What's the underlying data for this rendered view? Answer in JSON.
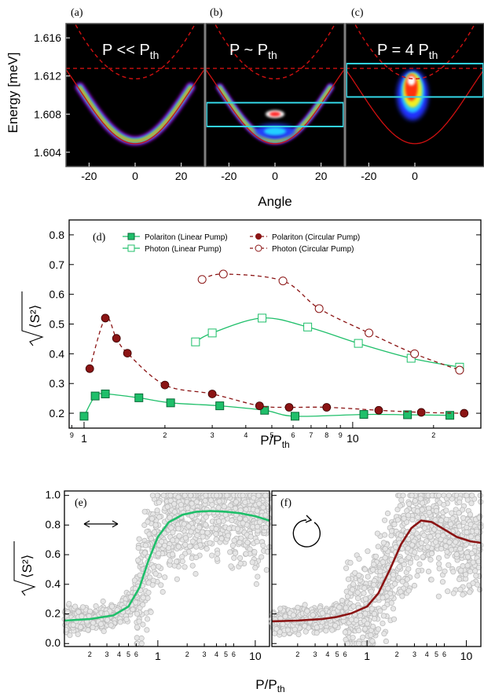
{
  "colors": {
    "green": "#1fbf6a",
    "darkred": "#8b1414",
    "cyan": "#33d6e6",
    "red_curve": "#d01010",
    "scatter": "#bcbcbc"
  },
  "chart_data": [
    {
      "type": "heatmap",
      "panel": "(a)",
      "title_main": "P << P",
      "title_sub": "th",
      "xlabel": "Angle",
      "ylabel": "Energy [meV]",
      "xlim": [
        -30,
        30
      ],
      "ylim": [
        1.6025,
        1.6175
      ],
      "xticks": [
        -20,
        0,
        20
      ],
      "yticks": [
        "1.604",
        "1.608",
        "1.612",
        "1.616"
      ],
      "ytick_values": [
        1.604,
        1.608,
        1.612,
        1.616
      ],
      "emission": {
        "center_energy": 1.605,
        "spread": "lower branch only"
      },
      "cyan_box": null
    },
    {
      "type": "heatmap",
      "panel": "(b)",
      "title_main": "P ~ P",
      "title_sub": "th",
      "xlim": [
        -30,
        30
      ],
      "xticks": [
        -20,
        0,
        20
      ],
      "emission": {
        "center_energy": 1.606,
        "spread": "lower branch plus bright spot near 1.608"
      },
      "cyan_box": [
        1.6067,
        1.6092
      ]
    },
    {
      "type": "heatmap",
      "panel": "(c)",
      "title_main": "P = 4 P",
      "title_sub": "th",
      "xlim": [
        -30,
        30
      ],
      "xticks": [
        -20,
        0
      ],
      "emission": {
        "center_energy": 1.61,
        "spread": "condensate around 1.608 to 1.612"
      },
      "cyan_box_outer": [
        1.6098,
        1.6133
      ],
      "cyan_box_inner": [
        1.6098,
        1.6098
      ]
    },
    {
      "type": "line",
      "panel": "(d)",
      "xlabel_main": "P/P",
      "xlabel_sub": "th",
      "xscale": "log",
      "xlim": [
        0.88,
        30
      ],
      "ylim": [
        0.15,
        0.85
      ],
      "yticks": [
        "0.2",
        "0.3",
        "0.4",
        "0.5",
        "0.6",
        "0.7",
        "0.8"
      ],
      "ytick_values": [
        0.2,
        0.3,
        0.4,
        0.5,
        0.6,
        0.7,
        0.8
      ],
      "xticks_major": [
        "1",
        "10"
      ],
      "xticks_minor": [
        "9",
        "2",
        "3",
        "4",
        "5",
        "6",
        "7",
        "8",
        "9",
        "2"
      ],
      "xticks_minor_values": [
        0.9,
        2,
        3,
        4,
        5,
        6,
        7,
        8,
        9,
        20
      ],
      "series": [
        {
          "name": "Polariton (Linear Pump)",
          "marker": "square-filled",
          "line": "solid",
          "x": [
            1.0,
            1.1,
            1.2,
            1.6,
            2.1,
            3.2,
            4.7,
            6.1,
            11.0,
            16.0,
            23.0
          ],
          "y": [
            0.19,
            0.258,
            0.265,
            0.252,
            0.235,
            0.225,
            0.21,
            0.19,
            0.196,
            0.195,
            0.193
          ]
        },
        {
          "name": "Photon (Linear Pump)",
          "marker": "square-open",
          "line": "solid",
          "x": [
            2.6,
            3.0,
            4.6,
            6.8,
            10.5,
            16.5,
            25.0
          ],
          "y": [
            0.44,
            0.47,
            0.52,
            0.49,
            0.435,
            0.385,
            0.355
          ]
        },
        {
          "name": "Polariton (Circular Pump)",
          "marker": "circle-filled",
          "line": "dashed",
          "x": [
            1.05,
            1.2,
            1.32,
            1.45,
            2.0,
            3.0,
            4.5,
            5.8,
            8.0,
            12.5,
            18.0,
            26.0
          ],
          "y": [
            0.35,
            0.52,
            0.452,
            0.402,
            0.295,
            0.265,
            0.225,
            0.22,
            0.22,
            0.21,
            0.203,
            0.2
          ]
        },
        {
          "name": "Photon (Circular Pump)",
          "marker": "circle-open",
          "line": "dashed",
          "x": [
            2.75,
            3.3,
            5.5,
            7.5,
            11.5,
            17.0,
            25.0
          ],
          "y": [
            0.65,
            0.668,
            0.645,
            0.552,
            0.47,
            0.4,
            0.345
          ]
        }
      ]
    },
    {
      "type": "scatter",
      "panel": "(e)",
      "xscale": "log",
      "xlim": [
        0.11,
        14
      ],
      "ylim": [
        -0.02,
        1.03
      ],
      "yticks": [
        "0.0",
        "0.2",
        "0.4",
        "0.6",
        "0.8",
        "1.0"
      ],
      "ytick_values": [
        0.0,
        0.2,
        0.4,
        0.6,
        0.8,
        1.0
      ],
      "xticks_major": [
        "1",
        "10"
      ],
      "xticks_minor": [
        "2",
        "3",
        "4",
        "5",
        "6",
        "2",
        "3",
        "4",
        "5",
        "6"
      ],
      "xticks_minor_values": [
        0.2,
        0.3,
        0.4,
        0.5,
        0.6,
        2,
        3,
        4,
        5,
        6
      ],
      "pump": "linear",
      "trend": {
        "x": [
          0.11,
          0.2,
          0.35,
          0.5,
          0.65,
          0.8,
          1.0,
          1.3,
          1.8,
          2.5,
          3.5,
          5.0,
          7.0,
          10.0,
          14.0
        ],
        "y": [
          0.155,
          0.165,
          0.19,
          0.25,
          0.38,
          0.56,
          0.72,
          0.82,
          0.87,
          0.89,
          0.895,
          0.89,
          0.88,
          0.86,
          0.83
        ]
      }
    },
    {
      "type": "scatter",
      "panel": "(f)",
      "xscale": "log",
      "xlim": [
        0.11,
        14
      ],
      "ylim": [
        -0.02,
        1.03
      ],
      "xticks_major": [
        "1",
        "10"
      ],
      "xticks_minor": [
        "2",
        "3",
        "4",
        "5",
        "6",
        "2",
        "3",
        "4",
        "5",
        "6"
      ],
      "xticks_minor_values": [
        0.2,
        0.3,
        0.4,
        0.5,
        0.6,
        2,
        3,
        4,
        5,
        6
      ],
      "pump": "circular",
      "xlabel_main": "P/P",
      "xlabel_sub": "th",
      "trend": {
        "x": [
          0.11,
          0.2,
          0.35,
          0.5,
          0.7,
          1.0,
          1.3,
          1.7,
          2.2,
          2.8,
          3.5,
          4.5,
          6.0,
          8.0,
          11.0,
          14.0
        ],
        "y": [
          0.15,
          0.155,
          0.165,
          0.18,
          0.205,
          0.25,
          0.34,
          0.5,
          0.67,
          0.78,
          0.83,
          0.82,
          0.77,
          0.72,
          0.69,
          0.68
        ]
      }
    }
  ]
}
